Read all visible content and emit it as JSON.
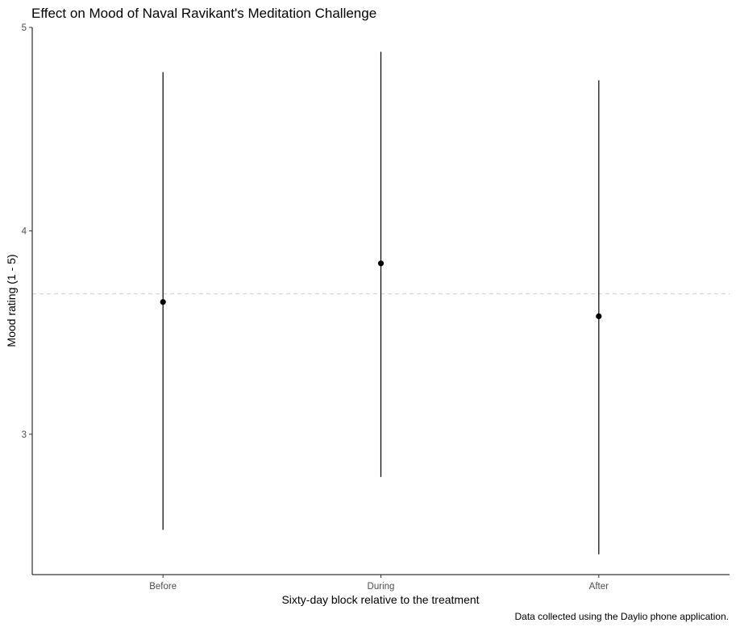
{
  "chart_data": {
    "type": "scatter",
    "title": "Effect on Mood of Naval Ravikant's Meditation Challenge",
    "xlabel": "Sixty-day block relative to the treatment",
    "ylabel": "Mood rating (1 - 5)",
    "caption": "Data collected using the Daylio phone application.",
    "categories": [
      "Before",
      "During",
      "After"
    ],
    "series": [
      {
        "values": [
          3.65,
          3.84,
          3.58
        ],
        "lower": [
          2.53,
          2.79,
          2.41
        ],
        "upper": [
          4.78,
          4.88,
          4.74
        ]
      }
    ],
    "reference_line": 3.69,
    "y_ticks": [
      3,
      4,
      5
    ],
    "ylim": [
      2.31,
      5.0
    ],
    "grid": false,
    "legend": "none",
    "colors": {
      "points": "#000000",
      "errorbars": "#000000",
      "reference_line": "#d0d0d0",
      "axis": "#000000",
      "tick_labels": "#4d4d4d"
    }
  }
}
